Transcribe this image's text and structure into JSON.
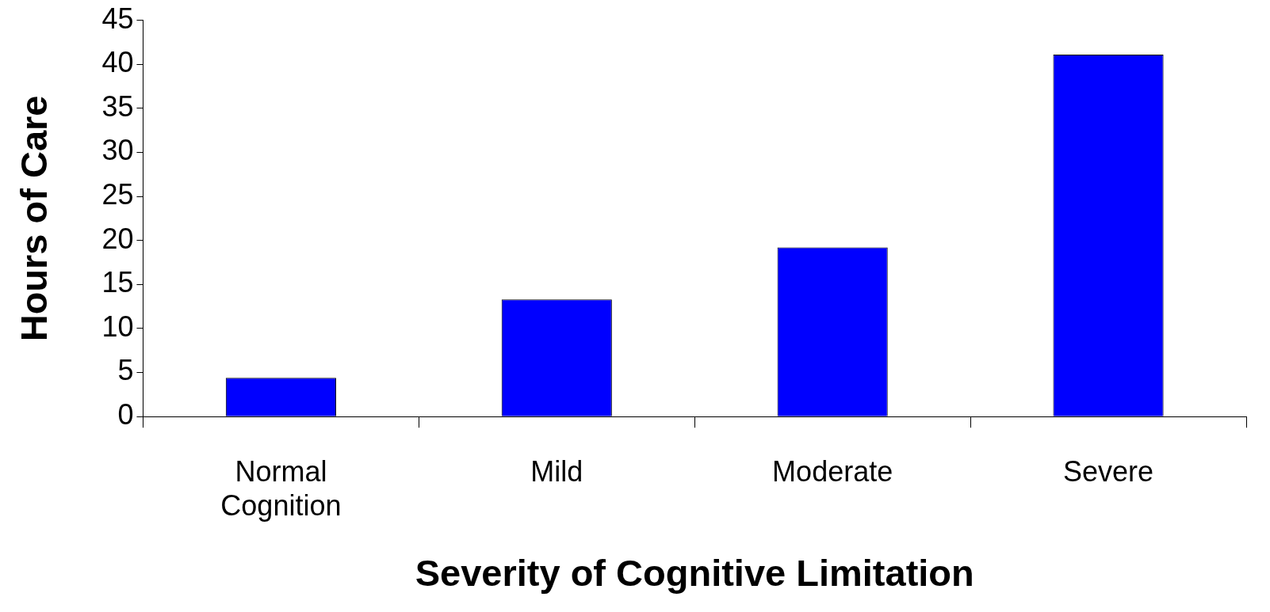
{
  "chart_data": {
    "type": "bar",
    "xlabel": "Severity of Cognitive Limitation",
    "ylabel": "Hours of Care",
    "categories": [
      "Normal Cognition",
      "Mild",
      "Moderate",
      "Severe"
    ],
    "values": [
      4.4,
      13.3,
      19.2,
      41.1
    ],
    "color": "#0000ff",
    "ylim": [
      0,
      45
    ],
    "yticks": [
      0,
      5,
      10,
      15,
      20,
      25,
      30,
      35,
      40,
      45
    ],
    "grid": false,
    "legend": false
  }
}
